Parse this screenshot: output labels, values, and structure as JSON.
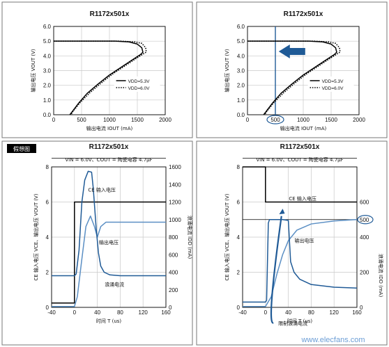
{
  "figure_tag": "假想图",
  "watermark": "www.elecfans.com",
  "chart_data": [
    {
      "type": "line",
      "title": "R1172x501x",
      "xlabel": "输出电流 IOUT (mA)",
      "ylabel": "输出电压 VOUT (V)",
      "xlim": [
        0,
        2000
      ],
      "ylim": [
        0,
        6
      ],
      "x_ticks": [
        "0",
        "500",
        "1000",
        "1500",
        "2000"
      ],
      "y_ticks": [
        "0.0",
        "1.0",
        "2.0",
        "3.0",
        "4.0",
        "5.0",
        "6.0"
      ],
      "grid": true,
      "legend_position": "right",
      "series": [
        {
          "name": "VDD=5.3V",
          "style": "solid",
          "color": "#000000",
          "points": [
            [
              0,
              5.0
            ],
            [
              1100,
              5.0
            ],
            [
              1350,
              4.95
            ],
            [
              1500,
              4.8
            ],
            [
              1580,
              4.55
            ],
            [
              1600,
              4.25
            ],
            [
              1560,
              4.1
            ],
            [
              1400,
              3.7
            ],
            [
              1200,
              3.2
            ],
            [
              1000,
              2.7
            ],
            [
              800,
              2.1
            ],
            [
              600,
              1.45
            ],
            [
              450,
              0.8
            ],
            [
              330,
              0.2
            ],
            [
              290,
              0.0
            ]
          ]
        },
        {
          "name": "VDD=6.0V",
          "style": "dotted",
          "color": "#000000",
          "points": [
            [
              0,
              5.0
            ],
            [
              1200,
              5.0
            ],
            [
              1450,
              4.95
            ],
            [
              1580,
              4.85
            ],
            [
              1650,
              4.55
            ],
            [
              1660,
              4.25
            ],
            [
              1600,
              4.12
            ],
            [
              1450,
              3.75
            ],
            [
              1250,
              3.25
            ],
            [
              1050,
              2.75
            ],
            [
              850,
              2.15
            ],
            [
              650,
              1.5
            ],
            [
              480,
              0.85
            ],
            [
              350,
              0.25
            ],
            [
              310,
              0.0
            ]
          ]
        }
      ]
    },
    {
      "type": "line",
      "title": "R1172x501x",
      "xlabel": "输出电流 IOUT (mA)",
      "ylabel": "输出电压 VOUT (V)",
      "xlim": [
        0,
        2000
      ],
      "ylim": [
        0,
        6
      ],
      "x_ticks": [
        "0",
        "500",
        "1000",
        "1500",
        "2000"
      ],
      "y_ticks": [
        "0.0",
        "1.0",
        "2.0",
        "3.0",
        "4.0",
        "5.0",
        "6.0"
      ],
      "grid": true,
      "legend_position": "right",
      "highlight_x": 500,
      "arrow_direction": "left",
      "series": [
        {
          "name": "VDD=5.3V",
          "style": "solid",
          "color": "#000000",
          "points": [
            [
              0,
              5.0
            ],
            [
              1100,
              5.0
            ],
            [
              1350,
              4.95
            ],
            [
              1500,
              4.8
            ],
            [
              1580,
              4.55
            ],
            [
              1600,
              4.25
            ],
            [
              1560,
              4.1
            ],
            [
              1400,
              3.7
            ],
            [
              1200,
              3.2
            ],
            [
              1000,
              2.7
            ],
            [
              800,
              2.1
            ],
            [
              600,
              1.45
            ],
            [
              450,
              0.8
            ],
            [
              330,
              0.2
            ],
            [
              290,
              0.0
            ]
          ]
        },
        {
          "name": "VDD=6.0V",
          "style": "dotted",
          "color": "#000000",
          "points": [
            [
              0,
              5.0
            ],
            [
              1200,
              5.0
            ],
            [
              1450,
              4.95
            ],
            [
              1580,
              4.85
            ],
            [
              1650,
              4.55
            ],
            [
              1660,
              4.25
            ],
            [
              1600,
              4.12
            ],
            [
              1450,
              3.75
            ],
            [
              1250,
              3.25
            ],
            [
              1050,
              2.75
            ],
            [
              850,
              2.15
            ],
            [
              650,
              1.5
            ],
            [
              480,
              0.85
            ],
            [
              350,
              0.25
            ],
            [
              310,
              0.0
            ]
          ]
        }
      ]
    },
    {
      "type": "line",
      "title": "R1172x501x",
      "subtitle": "VIN = 6.0V、COUT = 陶瓷电容 4.7μF",
      "xlabel": "时间 T (us)",
      "ylabel": "CE 输入电压 VCE、输出电压 VOUT (V)",
      "ylabel_right": "浪涌电流 IDD (mA)",
      "xlim": [
        -40,
        160
      ],
      "ylim": [
        0,
        8
      ],
      "ylim_right": [
        0,
        1600
      ],
      "x_ticks": [
        "-40",
        "0",
        "40",
        "80",
        "120",
        "160"
      ],
      "y_ticks": [
        "0",
        "2",
        "4",
        "6",
        "8"
      ],
      "y_ticks_right": [
        "0",
        "200",
        "400",
        "600",
        "800",
        "1000",
        "1200",
        "1400",
        "1600"
      ],
      "grid": true,
      "ce_level_right": 1700,
      "annotations": [
        {
          "text": "CE 输入电压",
          "x": 48,
          "y": 6.6
        },
        {
          "text": "输出电压",
          "x": 60,
          "y": 3.6
        },
        {
          "text": "浪涌电流",
          "x": 70,
          "y": 1.2
        }
      ],
      "series": [
        {
          "name": "CE 输入电压",
          "axis": "left",
          "color": "#000000",
          "points": [
            [
              -40,
              0.25
            ],
            [
              0,
              0.25
            ],
            [
              0,
              6.0
            ],
            [
              160,
              6.0
            ]
          ]
        },
        {
          "name": "输出电压",
          "axis": "left",
          "color": "#5b8fc4",
          "points": [
            [
              -40,
              0.05
            ],
            [
              0,
              0.05
            ],
            [
              5,
              0.6
            ],
            [
              12,
              2.5
            ],
            [
              20,
              4.6
            ],
            [
              28,
              5.2
            ],
            [
              35,
              4.6
            ],
            [
              40,
              4.0
            ],
            [
              46,
              4.6
            ],
            [
              55,
              4.85
            ],
            [
              80,
              4.85
            ],
            [
              160,
              4.85
            ]
          ]
        },
        {
          "name": "浪涌电流",
          "axis": "right",
          "color": "#1f5a96",
          "points": [
            [
              -40,
              360
            ],
            [
              0,
              360
            ],
            [
              3,
              380
            ],
            [
              8,
              650
            ],
            [
              13,
              1200
            ],
            [
              18,
              1450
            ],
            [
              24,
              1550
            ],
            [
              30,
              1540
            ],
            [
              33,
              1350
            ],
            [
              38,
              900
            ],
            [
              42,
              620
            ],
            [
              46,
              470
            ],
            [
              52,
              400
            ],
            [
              62,
              370
            ],
            [
              80,
              360
            ],
            [
              160,
              360
            ]
          ]
        }
      ]
    },
    {
      "type": "line",
      "title": "R1172x501x",
      "subtitle": "VIN = 6.0V、COUT = 陶瓷电容 4.7μF",
      "xlabel": "时间 T (us)",
      "ylabel": "CE 输入电压 VCE、输出电压 VOUT (V)",
      "ylabel_right": "浪涌电流 IDD (mA)",
      "xlim": [
        -40,
        160
      ],
      "ylim": [
        0,
        8
      ],
      "ylim_right": [
        0,
        800
      ],
      "x_ticks": [
        "-40",
        "0",
        "40",
        "80",
        "120",
        "160"
      ],
      "y_ticks": [
        "0",
        "2",
        "4",
        "6",
        "8"
      ],
      "y_ticks_right": [
        "0",
        "200",
        "400",
        "500",
        "600"
      ],
      "highlight_right_tick": "500",
      "limit_line_right": 500,
      "grid": true,
      "ce_level_right": 850,
      "annotations": [
        {
          "text": "CE 输入电压",
          "x": 65,
          "y": 6.1
        },
        {
          "text": "输出电压",
          "x": 68,
          "y": 3.7
        },
        {
          "text": "限制浪涌电流",
          "x": 48,
          "y": -1.0
        },
        {
          "text": "浪涌电流",
          "x": 75,
          "y": -2.6
        }
      ],
      "series": [
        {
          "name": "CE 输入电压",
          "axis": "left",
          "color": "#000000",
          "points": [
            [
              -40,
              8.0
            ],
            [
              0,
              8.0
            ],
            [
              0,
              6.0
            ],
            [
              160,
              6.0
            ]
          ]
        },
        {
          "name": "输出电压",
          "axis": "left",
          "color": "#5b8fc4",
          "points": [
            [
              -40,
              0.05
            ],
            [
              0,
              0.05
            ],
            [
              10,
              0.6
            ],
            [
              20,
              1.9
            ],
            [
              30,
              3.0
            ],
            [
              40,
              3.8
            ],
            [
              55,
              4.4
            ],
            [
              80,
              4.75
            ],
            [
              120,
              4.92
            ],
            [
              160,
              5.0
            ]
          ]
        },
        {
          "name": "浪涌电流",
          "axis": "right",
          "color": "#1f5a96",
          "points": [
            [
              -40,
              30
            ],
            [
              0,
              30
            ],
            [
              2,
              40
            ],
            [
              5,
              480
            ],
            [
              7,
              500
            ],
            [
              30,
              500
            ],
            [
              40,
              495
            ],
            [
              44,
              260
            ],
            [
              50,
              200
            ],
            [
              60,
              160
            ],
            [
              80,
              130
            ],
            [
              120,
              115
            ],
            [
              160,
              110
            ]
          ]
        }
      ]
    }
  ]
}
